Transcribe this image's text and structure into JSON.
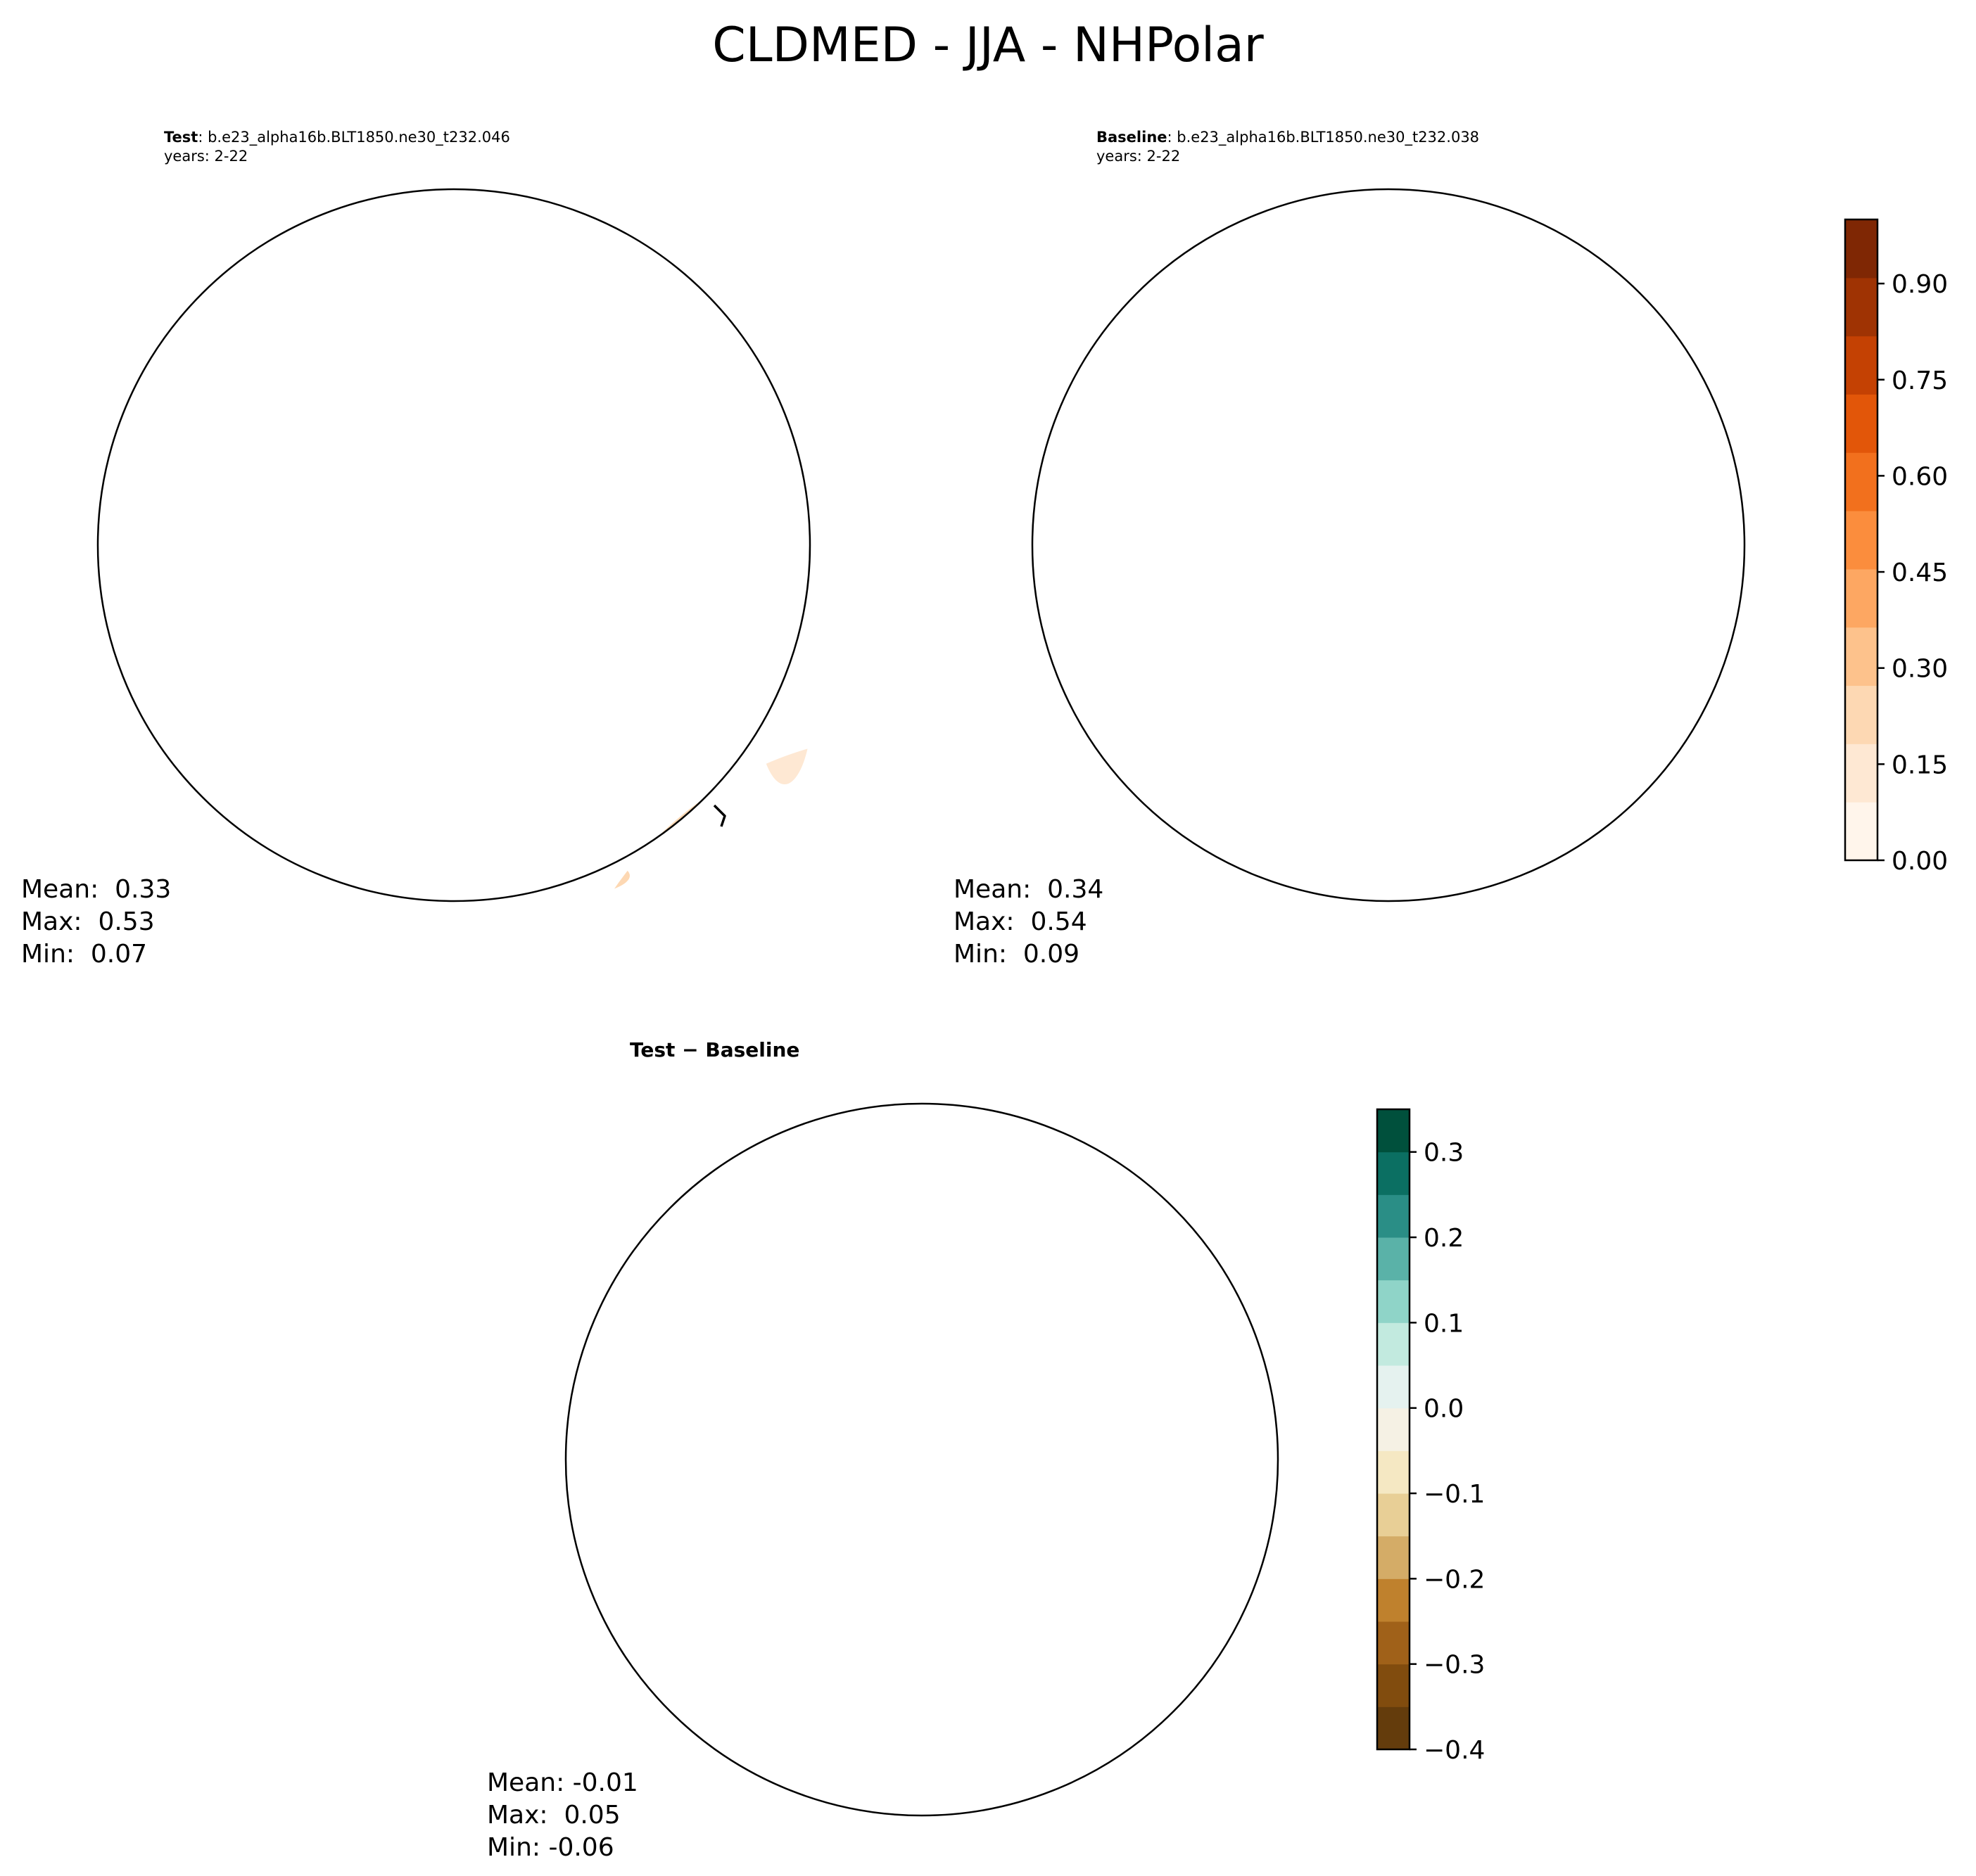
{
  "title": "CLDMED - JJA - NHPolar",
  "panels": {
    "test": {
      "label": "Test",
      "case": ": b.e23_alpha16b.BLT1850.ne30_t232.046",
      "years": "years: 2-22",
      "stats": {
        "mean": "Mean:  0.33",
        "max": "Max:  0.53",
        "min": "Min:  0.07"
      }
    },
    "baseline": {
      "label": "Baseline",
      "case": ": b.e23_alpha16b.BLT1850.ne30_t232.038",
      "years": "years: 2-22",
      "stats": {
        "mean": "Mean:  0.34",
        "max": "Max:  0.54",
        "min": "Min:  0.09"
      }
    },
    "diff": {
      "label": "Test − Baseline",
      "stats": {
        "mean": "Mean: -0.01",
        "max": "Max:  0.05",
        "min": "Min: -0.06"
      }
    }
  },
  "colorbars": {
    "main": {
      "range": [
        0.0,
        1.0
      ],
      "ticks": [
        0.0,
        0.15,
        0.3,
        0.45,
        0.6,
        0.75,
        0.9
      ],
      "tick_labels": [
        "0.00",
        "0.15",
        "0.30",
        "0.45",
        "0.60",
        "0.75",
        "0.90"
      ],
      "colors": [
        "#fff5eb",
        "#fee8d3",
        "#fdd8b3",
        "#fdc28c",
        "#fda762",
        "#fb8d3d",
        "#f2701d",
        "#e25609",
        "#c44103",
        "#9f3303",
        "#7f2704"
      ]
    },
    "diff": {
      "range": [
        -0.4,
        0.35
      ],
      "ticks": [
        -0.4,
        -0.3,
        -0.2,
        -0.1,
        0.0,
        0.1,
        0.2,
        0.3
      ],
      "tick_labels": [
        "−0.4",
        "−0.3",
        "−0.2",
        "−0.1",
        "0.0",
        "0.1",
        "0.2",
        "0.3"
      ],
      "colors": [
        "#643c0c",
        "#814c0e",
        "#a06119",
        "#bf812d",
        "#d4ac67",
        "#e8cf96",
        "#f5e8c3",
        "#f5f1e4",
        "#e5f2ef",
        "#c2eadf",
        "#8fd4c8",
        "#5ab2a8",
        "#2a8e86",
        "#0b6f62",
        "#00503c"
      ]
    }
  }
}
